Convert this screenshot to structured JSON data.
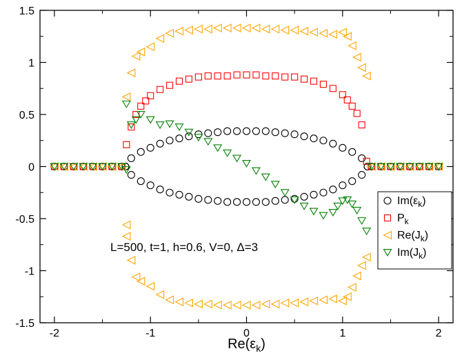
{
  "chart_data": {
    "type": "scatter",
    "title": "",
    "xlabel": "Re(ε",
    "xlabel_sub": "k",
    "xlabel_close": ")",
    "ylabel": "",
    "xlim": [
      -2.15,
      2.15
    ],
    "ylim": [
      -1.5,
      1.5
    ],
    "x_ticks": [
      -2,
      -1,
      0,
      1,
      2
    ],
    "x_tick_labels": [
      "-2",
      "-1",
      "0",
      "1",
      "2"
    ],
    "y_ticks": [
      -1.5,
      -1,
      -0.5,
      0,
      0.5,
      1,
      1.5
    ],
    "y_tick_labels": [
      "-1.5",
      "-1",
      "-0.5",
      "0",
      "0.5",
      "1",
      "1.5"
    ],
    "x_minor_ticks": [
      -1.5,
      -0.5,
      0.5,
      1.5
    ],
    "y_minor_ticks": [
      -1.25,
      -0.75,
      -0.25,
      0.25,
      0.75,
      1.25
    ],
    "annotation": "L=500, t=1, h=0.6, V=0, Δ=3",
    "legend_position": "right",
    "legend": [
      {
        "label": "Im(ε",
        "sub": "k",
        "close": ")",
        "marker": "circle",
        "color": "#000000"
      },
      {
        "label": "P",
        "sub": "k",
        "close": "",
        "marker": "square",
        "color": "#ff0000"
      },
      {
        "label": "Re(J",
        "sub": "k",
        "close": ")",
        "marker": "triangle-left",
        "color": "#ffa500"
      },
      {
        "label": "Im(J",
        "sub": "k",
        "close": ")",
        "marker": "triangle-down",
        "color": "#008000"
      }
    ],
    "series": [
      {
        "name": "Im(εk)",
        "marker": "circle",
        "color": "#000000",
        "x": [
          -1.26,
          -1.2,
          -1.1,
          -1.0,
          -0.9,
          -0.8,
          -0.7,
          -0.6,
          -0.5,
          -0.4,
          -0.3,
          -0.2,
          -0.1,
          0.0,
          0.1,
          0.2,
          0.3,
          0.4,
          0.5,
          0.6,
          0.7,
          0.8,
          0.9,
          1.0,
          1.1,
          1.2,
          1.26
        ],
        "y": [
          0.0,
          0.08,
          0.14,
          0.18,
          0.22,
          0.25,
          0.27,
          0.29,
          0.31,
          0.32,
          0.33,
          0.34,
          0.34,
          0.34,
          0.34,
          0.34,
          0.33,
          0.32,
          0.31,
          0.29,
          0.27,
          0.25,
          0.22,
          0.18,
          0.14,
          0.08,
          0.0
        ],
        "y_mirror": true,
        "flat_x": [
          -2.0,
          -1.9,
          -1.8,
          -1.7,
          -1.6,
          -1.5,
          -1.4,
          -1.3,
          1.3,
          1.4,
          1.5,
          1.6,
          1.7,
          1.8,
          1.9,
          2.0
        ],
        "flat_y": 0
      },
      {
        "name": "Pk",
        "marker": "square",
        "color": "#ff0000",
        "x": [
          -1.25,
          -1.2,
          -1.15,
          -1.1,
          -1.05,
          -1.0,
          -0.9,
          -0.8,
          -0.7,
          -0.6,
          -0.5,
          -0.4,
          -0.3,
          -0.2,
          -0.1,
          0.0,
          0.1,
          0.2,
          0.3,
          0.4,
          0.5,
          0.6,
          0.7,
          0.8,
          0.9,
          1.0,
          1.05,
          1.1,
          1.15,
          1.2,
          1.25
        ],
        "y": [
          0.21,
          0.38,
          0.5,
          0.58,
          0.63,
          0.68,
          0.74,
          0.78,
          0.82,
          0.84,
          0.86,
          0.87,
          0.87,
          0.87,
          0.88,
          0.88,
          0.88,
          0.87,
          0.87,
          0.86,
          0.86,
          0.84,
          0.82,
          0.79,
          0.75,
          0.69,
          0.64,
          0.58,
          0.51,
          0.4,
          0.05
        ],
        "flat_x": [
          -2.0,
          -1.9,
          -1.8,
          -1.7,
          -1.6,
          -1.5,
          -1.4,
          -1.3,
          1.3,
          1.4,
          1.5,
          1.6,
          1.7,
          1.8,
          1.9,
          2.0
        ],
        "flat_y": 0
      },
      {
        "name": "Re(Jk)",
        "marker": "triangle-left",
        "color": "#ffa500",
        "x": [
          -1.25,
          -1.2,
          -1.15,
          -1.1,
          -1.0,
          -0.9,
          -0.8,
          -0.7,
          -0.6,
          -0.5,
          -0.4,
          -0.3,
          -0.2,
          -0.1,
          0.0,
          0.1,
          0.2,
          0.3,
          0.4,
          0.5,
          0.6,
          0.7,
          0.8,
          0.9,
          1.0,
          1.05,
          1.1,
          1.15,
          1.2,
          1.25
        ],
        "y": [
          0.67,
          0.9,
          1.06,
          1.1,
          1.15,
          1.23,
          1.28,
          1.3,
          1.31,
          1.32,
          1.32,
          1.33,
          1.33,
          1.33,
          1.33,
          1.33,
          1.32,
          1.32,
          1.31,
          1.31,
          1.3,
          1.29,
          1.28,
          1.27,
          1.29,
          1.25,
          1.16,
          1.05,
          0.95,
          0.87
        ],
        "y_mirror": true,
        "flat_x": [
          -2.0,
          -1.9,
          -1.8,
          -1.7,
          -1.6,
          -1.5,
          -1.4,
          -1.3,
          1.3,
          1.4,
          1.5,
          1.6,
          1.7,
          1.8,
          1.9,
          2.0
        ],
        "flat_y": 0
      },
      {
        "name": "Im(Jk)",
        "marker": "triangle-down",
        "color": "#008000",
        "x": [
          -1.25,
          -1.2,
          -1.15,
          -1.1,
          -1.0,
          -0.9,
          -0.8,
          -0.7,
          -0.6,
          -0.5,
          -0.4,
          -0.3,
          -0.2,
          -0.1,
          0.0,
          0.1,
          0.2,
          0.3,
          0.4,
          0.5,
          0.6,
          0.7,
          0.8,
          0.9,
          0.95,
          1.0,
          1.05,
          1.1,
          1.15,
          1.2,
          1.25
        ],
        "y": [
          0.6,
          0.4,
          0.45,
          0.5,
          0.45,
          0.4,
          0.41,
          0.38,
          0.33,
          0.28,
          0.24,
          0.18,
          0.13,
          0.08,
          0.03,
          -0.04,
          -0.1,
          -0.17,
          -0.25,
          -0.32,
          -0.38,
          -0.43,
          -0.47,
          -0.44,
          -0.38,
          -0.33,
          -0.32,
          -0.36,
          -0.42,
          -0.52,
          -0.62
        ],
        "flat_x": [
          -2.0,
          -1.9,
          -1.8,
          -1.7,
          -1.6,
          -1.5,
          -1.4,
          -1.3,
          1.3,
          1.4,
          1.5,
          1.6,
          1.7,
          1.8,
          1.9,
          2.0
        ],
        "flat_y": 0,
        "extra_points": [
          [
            -1.25,
            -0.03
          ]
        ]
      }
    ],
    "extra_points": {
      "Re(Jk)": [
        [
          -1.25,
          -0.56
        ]
      ]
    }
  }
}
